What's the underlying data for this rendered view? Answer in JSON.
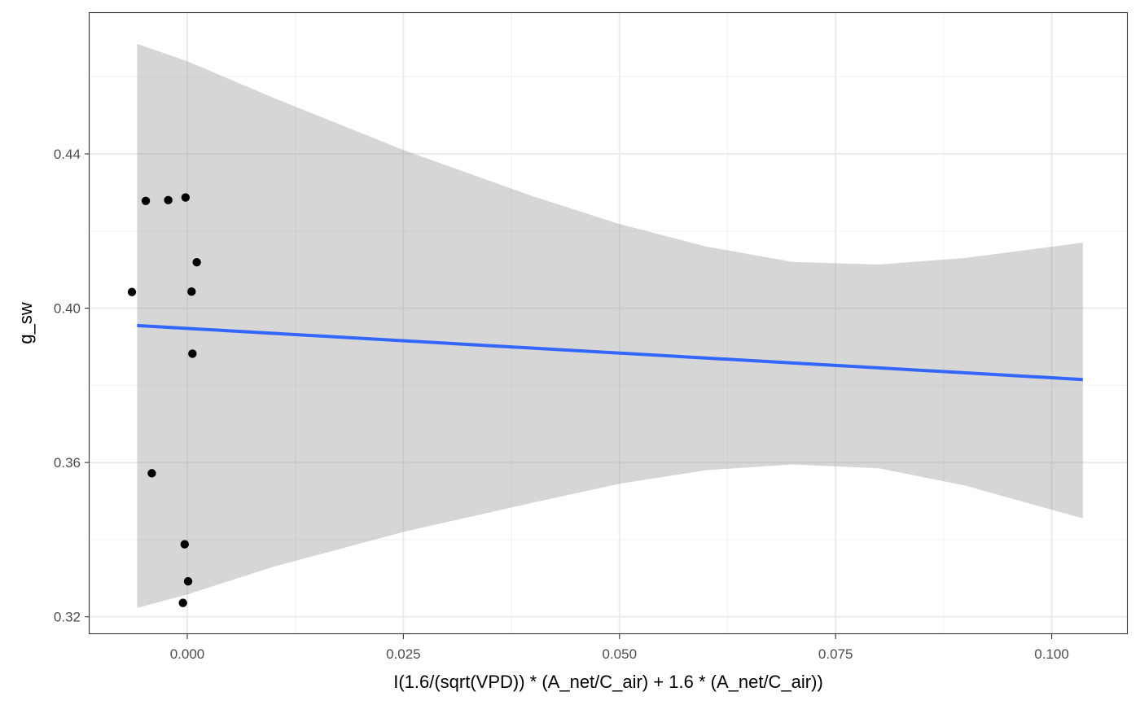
{
  "chart_data": {
    "type": "scatter",
    "title": "",
    "xlabel": "I(1.6/(sqrt(VPD)) * (A_net/C_air) + 1.6 * (A_net/C_air))",
    "ylabel": "g_sw",
    "xlim": [
      -0.0113,
      0.1088
    ],
    "ylim": [
      0.3155,
      0.4765
    ],
    "x_ticks": [
      0.0,
      0.025,
      0.05,
      0.075,
      0.1
    ],
    "x_tick_labels": [
      "0.000",
      "0.025",
      "0.050",
      "0.075",
      "0.100"
    ],
    "y_ticks": [
      0.32,
      0.36,
      0.4,
      0.44
    ],
    "y_tick_labels": [
      "0.32",
      "0.36",
      "0.40",
      "0.44"
    ],
    "grid": true,
    "points": [
      {
        "x": -0.0064,
        "y": 0.4042
      },
      {
        "x": -0.0048,
        "y": 0.4278
      },
      {
        "x": -0.0041,
        "y": 0.3572
      },
      {
        "x": -0.0022,
        "y": 0.428
      },
      {
        "x": -0.0002,
        "y": 0.4287
      },
      {
        "x": -0.0003,
        "y": 0.3388
      },
      {
        "x": 0.0001,
        "y": 0.3292
      },
      {
        "x": -0.0005,
        "y": 0.3236
      },
      {
        "x": 0.0005,
        "y": 0.4043
      },
      {
        "x": 0.0006,
        "y": 0.3882
      },
      {
        "x": 0.0011,
        "y": 0.4119
      }
    ],
    "fit_line": {
      "x": [
        -0.0058,
        0.1036
      ],
      "y": [
        0.3955,
        0.3815
      ]
    },
    "confidence_band": {
      "x": [
        -0.0058,
        0.0,
        0.01,
        0.025,
        0.04,
        0.05,
        0.06,
        0.07,
        0.08,
        0.09,
        0.1036
      ],
      "upper": [
        0.4685,
        0.464,
        0.4545,
        0.441,
        0.429,
        0.4218,
        0.416,
        0.412,
        0.4113,
        0.413,
        0.417
      ],
      "lower": [
        0.3223,
        0.3258,
        0.333,
        0.342,
        0.3496,
        0.3545,
        0.358,
        0.3595,
        0.3585,
        0.354,
        0.3455
      ]
    },
    "colors": {
      "point": "#000000",
      "line": "#3366FF",
      "band": "#999999",
      "grid_major": "#EBEBEB",
      "grid_minor": "#F2F2F2",
      "panel_border": "#333333"
    }
  }
}
